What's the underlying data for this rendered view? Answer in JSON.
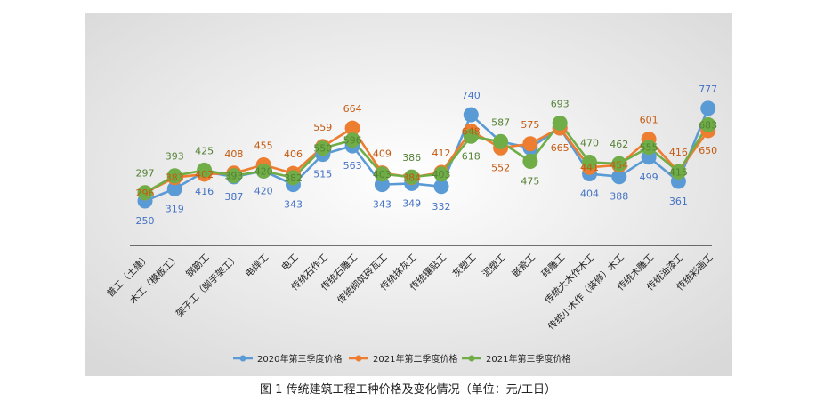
{
  "caption": "图 1   传统建筑工程工种价格及变化情况（单位：元/工日）",
  "chart_data": {
    "type": "line",
    "categories": [
      "普工（土建）",
      "木工（模板工）",
      "钢筋工",
      "架子工（脚手架工）",
      "电焊工",
      "电工",
      "传统石作工",
      "传统石雕工",
      "传统砌筑砖瓦工",
      "传统抹灰工",
      "传统镶贴工",
      "灰塑工",
      "泥塑工",
      "嵌瓷工",
      "砖雕工",
      "传统大木作木工",
      "传统小木作（装修）木工",
      "传统木雕工",
      "传统油漆工",
      "传统彩画工"
    ],
    "series": [
      {
        "name": "2020年第三季度价格",
        "color": "#5B9BD5",
        "values": [
          250,
          319,
          416,
          387,
          420,
          343,
          515,
          563,
          343,
          349,
          332,
          740,
          587,
          552,
          665,
          404,
          388,
          499,
          361,
          777
        ]
      },
      {
        "name": "2021年第二季度价格",
        "color": "#ED7D31",
        "values": [
          296,
          383,
          402,
          408,
          455,
          406,
          559,
          664,
          409,
          384,
          412,
          648,
          552,
          575,
          665,
          441,
          454,
          601,
          416,
          650
        ]
      },
      {
        "name": "2021年第三季度价格",
        "color": "#70AD47",
        "values": [
          297,
          393,
          425,
          393,
          420,
          382,
          550,
          596,
          403,
          386,
          403,
          618,
          587,
          475,
          693,
          470,
          462,
          555,
          415,
          683
        ]
      }
    ],
    "ylim": [
      150,
      1150
    ],
    "legend_position": "bottom",
    "grid": false
  }
}
